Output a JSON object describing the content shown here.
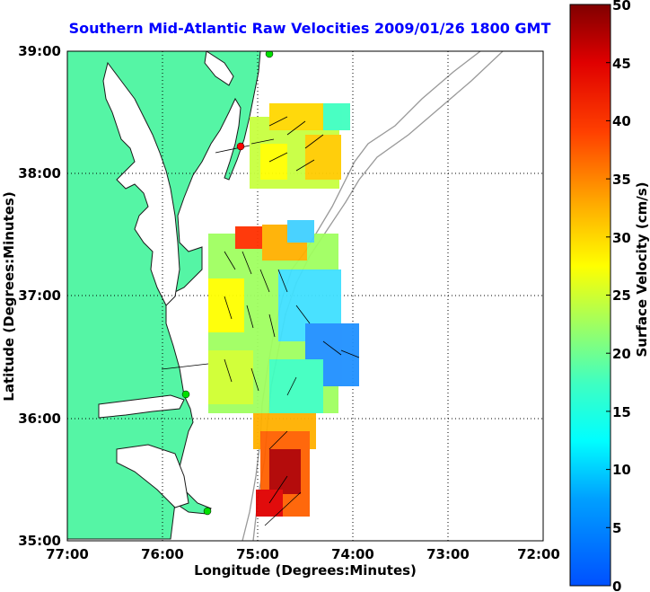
{
  "title": "Southern Mid-Atlantic Raw Velocities 2009/01/26 1800 GMT",
  "x_axis": {
    "label": "Longitude (Degrees:Minutes)",
    "ticks": [
      "77:00",
      "76:00",
      "75:00",
      "74:00",
      "73:00",
      "72:00"
    ]
  },
  "y_axis": {
    "label": "Latitude (Degrees:Minutes)",
    "ticks": [
      "39:00",
      "38:00",
      "37:00",
      "36:00",
      "35:00"
    ]
  },
  "colorbar": {
    "label": "Surface Velocity (cm/s)",
    "ticks": [
      "50",
      "45",
      "40",
      "35",
      "30",
      "25",
      "20",
      "15",
      "10",
      "5",
      "0"
    ],
    "min": 0,
    "max": 50
  },
  "colors": {
    "land": "#55f5a5",
    "title": "#0000ff"
  }
}
